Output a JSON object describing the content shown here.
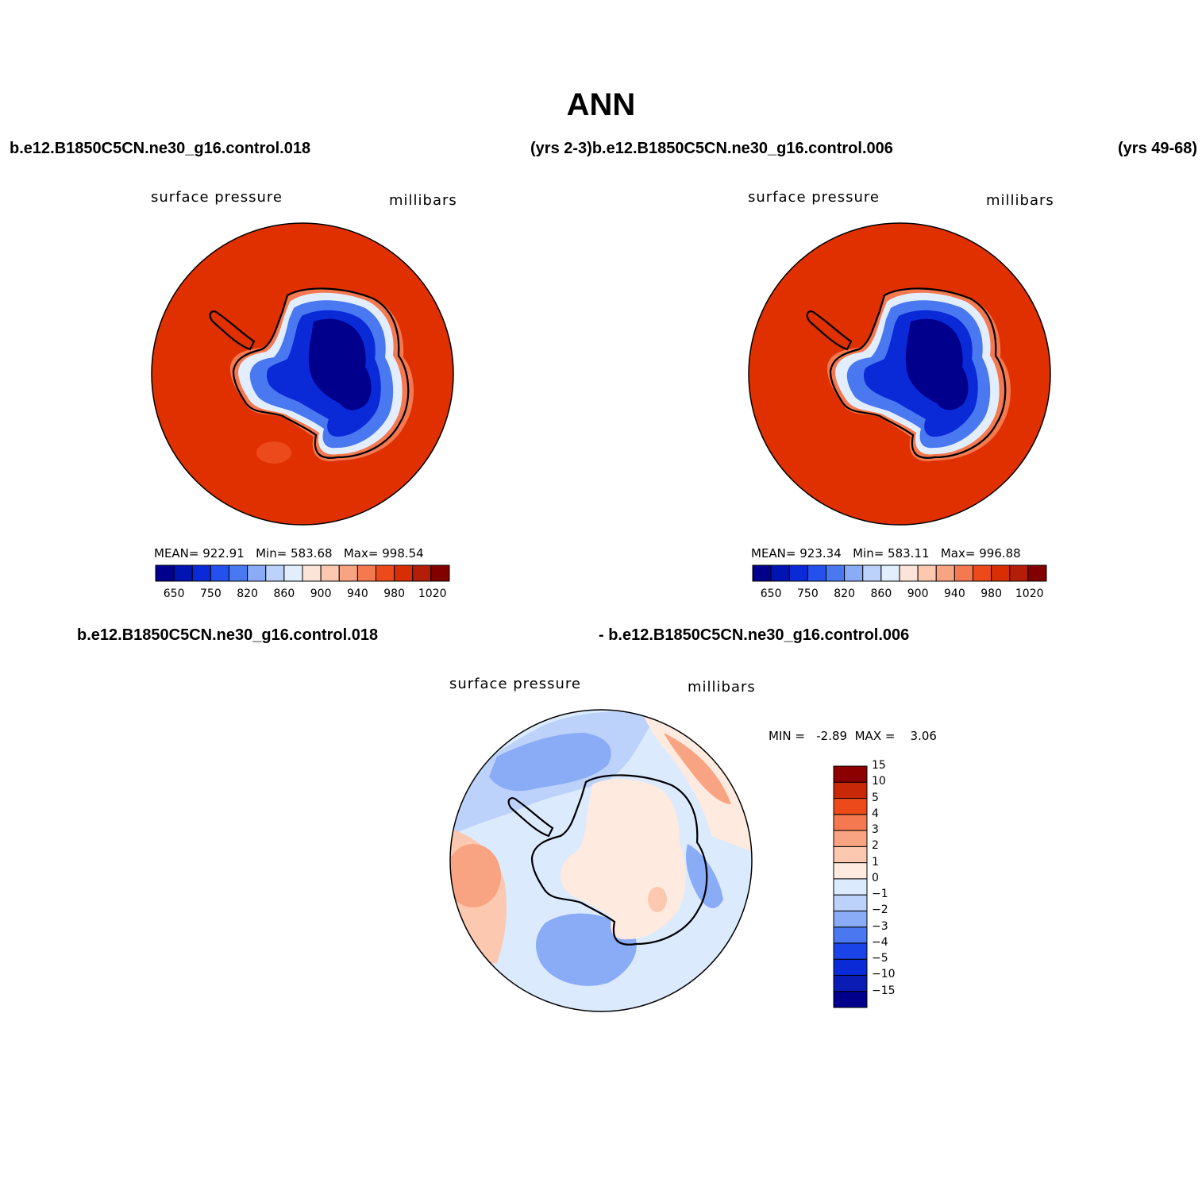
{
  "figure": {
    "title": "ANN",
    "header_left": "b.e12.B1850C5CN.ne30_g16.control.018",
    "header_mid": "(yrs 2-3)b.e12.B1850C5CN.ne30_g16.control.006",
    "header_right": "(yrs 49-68)",
    "diff_header_left": "b.e12.B1850C5CN.ne30_g16.control.018",
    "diff_header_right": "- b.e12.B1850C5CN.ne30_g16.control.006"
  },
  "colors": {
    "ocean": "#e03000",
    "ice_deep": "#00008c",
    "ice_mid": "#0a2ad8",
    "ice_light": "#4a78f0",
    "coast": "#000000"
  },
  "panels": [
    {
      "id": "control-018",
      "variable_label": "surface pressure",
      "units_label": "millibars",
      "stats": {
        "mean_label": "MEAN=",
        "mean": "922.91",
        "min_label": "Min=",
        "min": "583.68",
        "max_label": "Max=",
        "max": "998.54"
      }
    },
    {
      "id": "control-006",
      "variable_label": "surface pressure",
      "units_label": "millibars",
      "stats": {
        "mean_label": "MEAN=",
        "mean": "923.34",
        "min_label": "Min=",
        "min": "583.11",
        "max_label": "Max=",
        "max": "996.88"
      }
    }
  ],
  "abs_colorbar": {
    "colors": [
      "#00008c",
      "#0014b4",
      "#0a2ad8",
      "#2450ee",
      "#4a78f0",
      "#8aacf6",
      "#bcd2fa",
      "#e2eefe",
      "#fde4d8",
      "#fcc8b0",
      "#f8a482",
      "#f47850",
      "#ec4a1a",
      "#d82e04",
      "#b41e08",
      "#820000"
    ],
    "tick_labels": [
      "650",
      "750",
      "820",
      "860",
      "900",
      "940",
      "980",
      "1020"
    ]
  },
  "diff_panel": {
    "variable_label": "surface pressure",
    "units_label": "millibars",
    "min_label": "MIN =",
    "min": "-2.89",
    "max_label": "MAX =",
    "max": "3.06",
    "colorbar": {
      "colors": [
        "#00008c",
        "#0a1cb4",
        "#0a2ad8",
        "#1a44e8",
        "#4a78f0",
        "#8aacf6",
        "#bcd2fa",
        "#dceafe",
        "#feeade",
        "#fcc8b0",
        "#f8a482",
        "#f47850",
        "#ec4a1a",
        "#c82808",
        "#8c0000"
      ],
      "tick_labels": [
        "−15",
        "−10",
        "−5",
        "−4",
        "−3",
        "−2",
        "−1",
        "0",
        "1",
        "2",
        "3",
        "4",
        "5",
        "10",
        "15"
      ]
    }
  }
}
